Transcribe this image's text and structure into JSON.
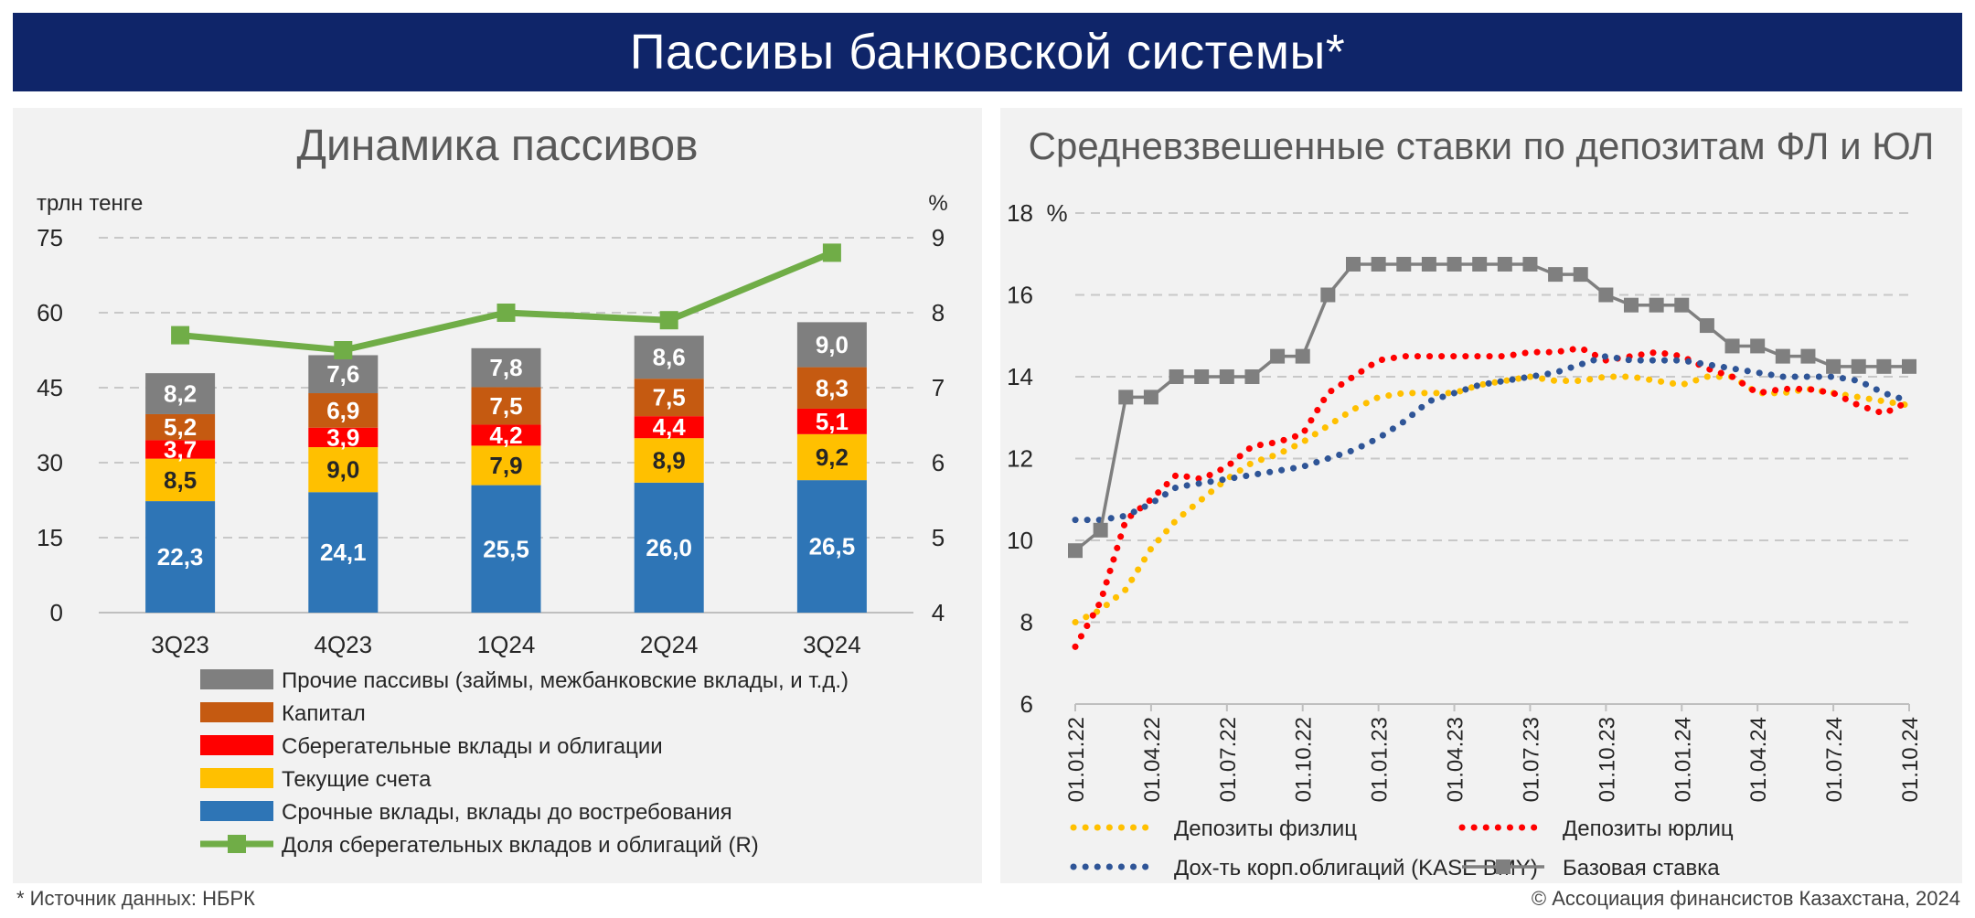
{
  "banner": {
    "title": "Пассивы банковской системы*"
  },
  "footer": {
    "source": "* Источник данных: НБРК",
    "copyright": "© Ассоциация финансистов Казахстана, 2024"
  },
  "chart_data": [
    {
      "type": "bar",
      "stacked": true,
      "title": "Динамика пассивов",
      "ylabel": "трлн тенге",
      "y2label": "%",
      "ylim": [
        0,
        75
      ],
      "yticks": [
        0,
        15,
        30,
        45,
        60,
        75
      ],
      "y2lim": [
        4,
        9
      ],
      "y2ticks": [
        4,
        5,
        6,
        7,
        8,
        9
      ],
      "grid": true,
      "legend_position": "bottom",
      "categories": [
        "3Q23",
        "4Q23",
        "1Q24",
        "2Q24",
        "3Q24"
      ],
      "series": [
        {
          "name": "Срочные вклады, вклады до востребования",
          "color": "#2e75b6",
          "label_color": "#ffffff",
          "values": [
            22.3,
            24.1,
            25.5,
            26.0,
            26.5
          ],
          "labels": [
            "22,3",
            "24,1",
            "25,5",
            "26,0",
            "26,5"
          ]
        },
        {
          "name": "Текущие счета",
          "color": "#ffc000",
          "label_color": "#262626",
          "values": [
            8.5,
            9.0,
            7.9,
            8.9,
            9.2
          ],
          "labels": [
            "8,5",
            "9,0",
            "7,9",
            "8,9",
            "9,2"
          ]
        },
        {
          "name": "Сберегательные вклады и облигации",
          "color": "#ff0000",
          "label_color": "#ffffff",
          "values": [
            3.7,
            3.9,
            4.2,
            4.4,
            5.1
          ],
          "labels": [
            "3,7",
            "3,9",
            "4,2",
            "4,4",
            "5,1"
          ]
        },
        {
          "name": "Капитал",
          "color": "#c55a11",
          "label_color": "#ffffff",
          "values": [
            5.2,
            6.9,
            7.5,
            7.5,
            8.3
          ],
          "labels": [
            "5,2",
            "6,9",
            "7,5",
            "7,5",
            "8,3"
          ]
        },
        {
          "name": "Прочие пассивы (займы, межбанковские вклады, и т.д.)",
          "color": "#7f7f7f",
          "label_color": "#ffffff",
          "values": [
            8.2,
            7.6,
            7.8,
            8.6,
            9.0
          ],
          "labels": [
            "8,2",
            "7,6",
            "7,8",
            "8,6",
            "9,0"
          ]
        }
      ],
      "line_series": {
        "name": "Доля сберегательных вкладов и облигаций (R)",
        "color": "#70ad47",
        "axis": "right",
        "values": [
          7.7,
          7.5,
          8.0,
          7.9,
          8.8
        ]
      },
      "legend_order": [
        4,
        3,
        2,
        1,
        0,
        "line"
      ]
    },
    {
      "type": "line",
      "title": "Средневзвешенные ставки по депозитам ФЛ и ЮЛ",
      "ylabel": "%",
      "ylim": [
        6,
        18
      ],
      "yticks": [
        6,
        8,
        10,
        12,
        14,
        16,
        18
      ],
      "grid": true,
      "legend_position": "bottom",
      "x_tick_labels": [
        "01.01.22",
        "01.04.22",
        "01.07.22",
        "01.10.22",
        "01.01.23",
        "01.04.23",
        "01.07.23",
        "01.10.23",
        "01.01.24",
        "01.04.24",
        "01.07.24",
        "01.10.24"
      ],
      "x_range": [
        "2022-01",
        "2024-10"
      ],
      "series": [
        {
          "name": "Депозиты физлиц",
          "style": "dotted",
          "color": "#ffc000",
          "x": [
            "2022-01",
            "2022-02",
            "2022-03",
            "2022-04",
            "2022-05",
            "2022-06",
            "2022-07",
            "2022-08",
            "2022-09",
            "2022-10",
            "2022-11",
            "2022-12",
            "2023-01",
            "2023-02",
            "2023-03",
            "2023-04",
            "2023-05",
            "2023-06",
            "2023-07",
            "2023-08",
            "2023-09",
            "2023-10",
            "2023-11",
            "2023-12",
            "2024-01",
            "2024-02",
            "2024-03",
            "2024-04",
            "2024-05",
            "2024-06",
            "2024-07",
            "2024-08",
            "2024-09",
            "2024-10"
          ],
          "values": [
            8.0,
            8.3,
            8.8,
            9.8,
            10.5,
            11.0,
            11.5,
            11.9,
            12.1,
            12.4,
            12.8,
            13.2,
            13.5,
            13.6,
            13.6,
            13.6,
            13.8,
            13.9,
            14.0,
            13.9,
            13.9,
            14.0,
            14.0,
            13.9,
            13.8,
            14.0,
            14.0,
            13.6,
            13.6,
            13.7,
            13.6,
            13.5,
            13.4,
            13.3
          ]
        },
        {
          "name": "Депозиты юрлиц",
          "style": "dotted",
          "color": "#ff0000",
          "x": [
            "2022-01",
            "2022-02",
            "2022-03",
            "2022-04",
            "2022-05",
            "2022-06",
            "2022-07",
            "2022-08",
            "2022-09",
            "2022-10",
            "2022-11",
            "2022-12",
            "2023-01",
            "2023-02",
            "2023-03",
            "2023-04",
            "2023-05",
            "2023-06",
            "2023-07",
            "2023-08",
            "2023-09",
            "2023-10",
            "2023-11",
            "2023-12",
            "2024-01",
            "2024-02",
            "2024-03",
            "2024-04",
            "2024-05",
            "2024-06",
            "2024-07",
            "2024-08",
            "2024-09",
            "2024-10"
          ],
          "values": [
            7.4,
            8.5,
            10.5,
            11.0,
            11.6,
            11.5,
            11.8,
            12.3,
            12.4,
            12.6,
            13.6,
            14.0,
            14.4,
            14.5,
            14.5,
            14.5,
            14.5,
            14.5,
            14.6,
            14.6,
            14.7,
            14.4,
            14.5,
            14.6,
            14.5,
            14.2,
            14.0,
            13.6,
            13.7,
            13.7,
            13.6,
            13.3,
            13.1,
            13.4
          ]
        },
        {
          "name": "Дох-ть корп.облигаций (KASE BMY)",
          "style": "dotted",
          "color": "#2f5597",
          "x": [
            "2022-01",
            "2022-02",
            "2022-03",
            "2022-04",
            "2022-05",
            "2022-06",
            "2022-07",
            "2022-08",
            "2022-09",
            "2022-10",
            "2022-11",
            "2022-12",
            "2023-01",
            "2023-02",
            "2023-03",
            "2023-04",
            "2023-05",
            "2023-06",
            "2023-07",
            "2023-08",
            "2023-09",
            "2023-10",
            "2023-11",
            "2023-12",
            "2024-01",
            "2024-02",
            "2024-03",
            "2024-04",
            "2024-05",
            "2024-06",
            "2024-07",
            "2024-08",
            "2024-09",
            "2024-10"
          ],
          "values": [
            10.5,
            10.5,
            10.6,
            10.9,
            11.3,
            11.4,
            11.5,
            11.6,
            11.7,
            11.8,
            12.0,
            12.2,
            12.5,
            12.9,
            13.4,
            13.6,
            13.8,
            13.9,
            14.0,
            14.1,
            14.3,
            14.5,
            14.4,
            14.4,
            14.4,
            14.3,
            14.2,
            14.1,
            14.0,
            14.0,
            14.0,
            13.9,
            13.6,
            13.4
          ]
        },
        {
          "name": "Базовая ставка",
          "style": "solid-square-markers",
          "color": "#7f7f7f",
          "x": [
            "2022-01",
            "2022-02",
            "2022-03",
            "2022-04",
            "2022-05",
            "2022-06",
            "2022-07",
            "2022-08",
            "2022-09",
            "2022-10",
            "2022-11",
            "2022-12",
            "2023-01",
            "2023-02",
            "2023-03",
            "2023-04",
            "2023-05",
            "2023-06",
            "2023-07",
            "2023-08",
            "2023-09",
            "2023-10",
            "2023-11",
            "2023-12",
            "2024-01",
            "2024-02",
            "2024-03",
            "2024-04",
            "2024-05",
            "2024-06",
            "2024-07",
            "2024-08",
            "2024-09",
            "2024-10"
          ],
          "values": [
            9.75,
            10.25,
            13.5,
            13.5,
            14.0,
            14.0,
            14.0,
            14.0,
            14.5,
            14.5,
            16.0,
            16.75,
            16.75,
            16.75,
            16.75,
            16.75,
            16.75,
            16.75,
            16.75,
            16.5,
            16.5,
            16.0,
            15.75,
            15.75,
            15.75,
            15.25,
            14.75,
            14.75,
            14.5,
            14.5,
            14.25,
            14.25,
            14.25,
            14.25
          ]
        }
      ],
      "legend_order": [
        0,
        1,
        2,
        3
      ]
    }
  ]
}
